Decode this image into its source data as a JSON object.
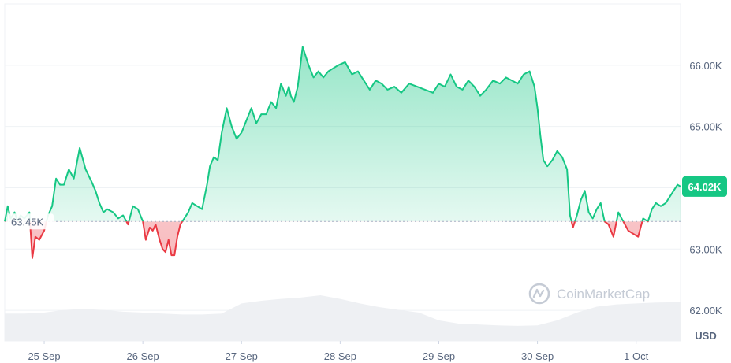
{
  "chart_data": {
    "type": "area",
    "x_tick_labels": [
      "25 Sep",
      "26 Sep",
      "27 Sep",
      "28 Sep",
      "29 Sep",
      "30 Sep",
      "1 Oct"
    ],
    "y_ticks": [
      62000,
      63000,
      64000,
      65000,
      66000
    ],
    "y_tick_labels": [
      "62.00K",
      "63.00K",
      "64.00K",
      "65.00K",
      "66.00K"
    ],
    "ylim": [
      61500,
      67000
    ],
    "xlim": [
      24.6,
      31.45
    ],
    "unit_label": "USD",
    "reference_price": 63450,
    "reference_label": "63.45K",
    "current_price": 64020,
    "current_label": "64.02K",
    "grid": true,
    "colors": {
      "above": "#16c784",
      "below": "#ea3943",
      "reference": "#a6b0c3",
      "grid": "#eff2f5",
      "volume": "#eef0f3"
    },
    "series": [
      {
        "x": [
          24.6,
          24.63,
          24.66,
          24.7,
          24.73,
          24.76,
          24.8,
          24.85,
          24.88,
          24.91,
          24.95,
          25.0,
          25.04,
          25.08,
          25.12,
          25.16,
          25.2,
          25.25,
          25.3,
          25.36,
          25.42,
          25.48,
          25.52,
          25.56,
          25.6,
          25.64,
          25.7,
          25.75,
          25.8,
          25.85,
          25.9,
          25.95,
          26.0,
          26.03,
          26.07,
          26.1,
          26.13,
          26.17,
          26.2,
          26.23,
          26.26,
          26.29,
          26.32,
          26.35,
          26.38,
          26.42,
          26.46,
          26.5,
          26.55,
          26.6,
          26.65,
          26.68,
          26.72,
          26.76,
          26.8,
          26.85,
          26.9,
          26.95,
          27.0,
          27.05,
          27.1,
          27.15,
          27.2,
          27.25,
          27.3,
          27.35,
          27.4,
          27.45,
          27.48,
          27.5,
          27.53,
          27.57,
          27.62,
          27.68,
          27.73,
          27.78,
          27.83,
          27.88,
          27.93,
          27.98,
          28.05,
          28.12,
          28.18,
          28.24,
          28.3,
          28.36,
          28.42,
          28.48,
          28.55,
          28.62,
          28.7,
          28.78,
          28.86,
          28.94,
          29.0,
          29.06,
          29.12,
          29.18,
          29.24,
          29.3,
          29.36,
          29.42,
          29.48,
          29.55,
          29.62,
          29.68,
          29.74,
          29.8,
          29.86,
          29.92,
          29.97,
          30.0,
          30.03,
          30.06,
          30.1,
          30.15,
          30.2,
          30.25,
          30.3,
          30.33,
          30.36,
          30.4,
          30.44,
          30.48,
          30.52,
          30.56,
          30.6,
          30.64,
          30.68,
          30.72,
          30.77,
          30.82,
          30.87,
          30.92,
          30.97,
          31.02,
          31.07,
          31.12,
          31.16,
          31.2,
          31.25,
          31.3,
          31.36,
          31.42,
          31.45
        ],
        "values": [
          63450,
          63700,
          63500,
          63600,
          63450,
          63550,
          63500,
          63600,
          62850,
          63200,
          63150,
          63300,
          63550,
          63700,
          64150,
          64050,
          64050,
          64300,
          64150,
          64650,
          64300,
          64100,
          63950,
          63750,
          63600,
          63650,
          63600,
          63500,
          63550,
          63400,
          63700,
          63650,
          63450,
          63150,
          63350,
          63300,
          63400,
          63150,
          63000,
          62950,
          63150,
          62900,
          62900,
          63200,
          63400,
          63500,
          63600,
          63750,
          63700,
          63650,
          64050,
          64350,
          64500,
          64450,
          64900,
          65300,
          65000,
          64800,
          64900,
          65100,
          65300,
          65050,
          65200,
          65200,
          65400,
          65300,
          65700,
          65500,
          65650,
          65500,
          65400,
          65650,
          66300,
          66000,
          65800,
          65900,
          65800,
          65900,
          65950,
          66000,
          66050,
          65850,
          65900,
          65750,
          65600,
          65750,
          65700,
          65600,
          65650,
          65550,
          65700,
          65650,
          65600,
          65550,
          65700,
          65650,
          65850,
          65650,
          65600,
          65750,
          65650,
          65500,
          65600,
          65750,
          65700,
          65800,
          65750,
          65700,
          65850,
          65900,
          65650,
          65300,
          64850,
          64450,
          64350,
          64450,
          64600,
          64500,
          64300,
          63550,
          63350,
          63550,
          63800,
          63950,
          63600,
          63500,
          63650,
          63750,
          63450,
          63400,
          63200,
          63600,
          63450,
          63300,
          63250,
          63200,
          63500,
          63450,
          63650,
          63750,
          63700,
          63750,
          63900,
          64050,
          64020
        ]
      }
    ],
    "volume": {
      "x": [
        24.6,
        24.8,
        25.0,
        25.2,
        25.4,
        25.6,
        25.8,
        26.0,
        26.2,
        26.4,
        26.6,
        26.8,
        27.0,
        27.2,
        27.4,
        27.6,
        27.8,
        28.0,
        28.2,
        28.4,
        28.6,
        28.8,
        29.0,
        29.2,
        29.4,
        29.6,
        29.8,
        30.0,
        30.2,
        30.4,
        30.6,
        30.8,
        31.0,
        31.2,
        31.45
      ],
      "values": [
        0.6,
        0.6,
        0.62,
        0.68,
        0.7,
        0.68,
        0.64,
        0.62,
        0.6,
        0.58,
        0.58,
        0.6,
        0.82,
        0.88,
        0.92,
        0.95,
        1.0,
        0.92,
        0.82,
        0.74,
        0.68,
        0.62,
        0.45,
        0.38,
        0.36,
        0.34,
        0.33,
        0.34,
        0.45,
        0.62,
        0.75,
        0.8,
        0.82,
        0.84,
        0.85
      ]
    },
    "watermark": "CoinMarketCap"
  }
}
